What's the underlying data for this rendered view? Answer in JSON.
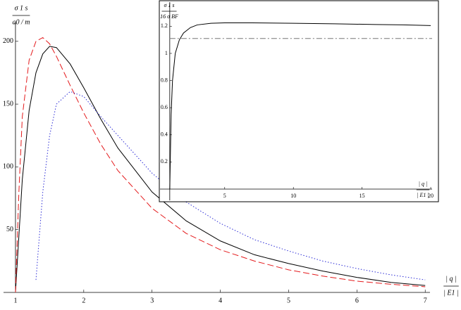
{
  "chart_data": [
    {
      "type": "line",
      "x": [
        1,
        1.05,
        1.1,
        1.2,
        1.3,
        1.4,
        1.5,
        1.6,
        1.8,
        2,
        2.25,
        2.5,
        3,
        3.5,
        4,
        4.5,
        5,
        5.5,
        6,
        6.5,
        7
      ],
      "series": [
        {
          "color": "#000000",
          "dash": "solid",
          "values": [
            0,
            45,
            90,
            145,
            175,
            190,
            196,
            195,
            182,
            163,
            138,
            115,
            80,
            57,
            41,
            30,
            23,
            17,
            12,
            8,
            5.5
          ]
        },
        {
          "color": "#e41a1c",
          "dash": "dashed",
          "values": [
            0,
            80,
            140,
            185,
            200,
            203,
            198,
            188,
            165,
            143,
            118,
            97,
            67,
            47,
            34,
            25,
            18,
            13,
            9,
            6.5,
            4.5
          ]
        },
        {
          "color": "#2b2bd6",
          "dash": "dotted",
          "values": [
            null,
            null,
            null,
            null,
            10,
            80,
            125,
            150,
            160,
            156,
            140,
            125,
            95,
            72,
            55,
            42,
            33,
            25,
            19,
            14,
            10
          ]
        }
      ],
      "xlim": [
        0.825,
        7.07
      ],
      "ylim": [
        0,
        215
      ],
      "xticks": [
        1,
        2,
        3,
        4,
        5,
        6,
        7
      ],
      "yticks": [
        50,
        100,
        150,
        200
      ],
      "axes_origin": [
        1,
        0
      ],
      "x_label": {
        "numerator": "| q |",
        "denominator": "| E1 |"
      },
      "y_label": {
        "numerator": "σ 1 s",
        "denominator": "a0 / m"
      }
    },
    {
      "type": "line",
      "x": [
        1,
        1.1,
        1.2,
        1.4,
        1.7,
        2,
        2.5,
        3,
        4,
        5,
        7,
        10,
        13,
        16,
        18,
        20
      ],
      "series": [
        {
          "color": "#000000",
          "dash": "solid",
          "values": [
            0,
            0.55,
            0.8,
            1.0,
            1.1,
            1.15,
            1.19,
            1.21,
            1.222,
            1.225,
            1.225,
            1.222,
            1.218,
            1.213,
            1.21,
            1.205
          ]
        }
      ],
      "hlines": [
        {
          "value": 1.11,
          "color": "#777777",
          "dash": "dash-dot"
        }
      ],
      "xlim": [
        0.29,
        20.1
      ],
      "ylim": [
        -0.083,
        1.378
      ],
      "xticks": [
        5,
        10,
        15,
        20
      ],
      "yticks": [
        0.2,
        0.4,
        0.6,
        0.8,
        1.0,
        1.2
      ],
      "axes_origin": [
        1,
        0
      ],
      "x_label": {
        "numerator": "| q |",
        "denominator": "| E1 |"
      },
      "y_label": {
        "numerator": "σ 1 s",
        "denominator": "16 σ BF"
      }
    }
  ]
}
